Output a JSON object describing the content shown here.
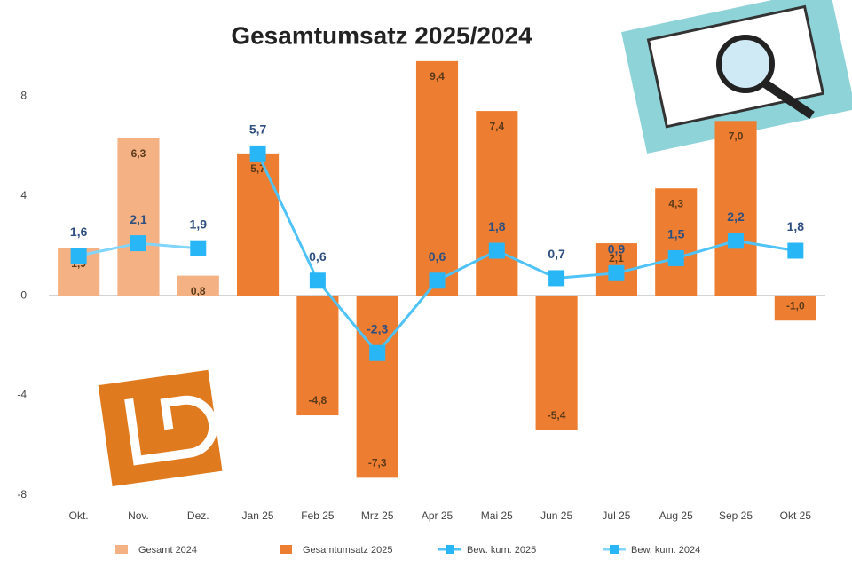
{
  "chart_data": {
    "type": "combo",
    "title": "Gesamtumsatz 2025/2024",
    "categories": [
      "Okt.",
      "Nov.",
      "Dez.",
      "Jan 25",
      "Feb 25",
      "Mrz 25",
      "Apr 25",
      "Mai 25",
      "Jun 25",
      "Jul 25",
      "Aug 25",
      "Sep 25",
      "Okt 25"
    ],
    "ylim": [
      -8,
      10
    ],
    "yticks": [
      -8,
      -4,
      0,
      4,
      8
    ],
    "grid": false,
    "series": [
      {
        "name": "Gesamt 2024",
        "type": "bar",
        "color": "#f4b183",
        "values": [
          1.9,
          6.3,
          0.8,
          null,
          null,
          null,
          null,
          null,
          null,
          null,
          null,
          null,
          null
        ],
        "value_labels": [
          "1,9",
          "6,3",
          "0,8",
          null,
          null,
          null,
          null,
          null,
          null,
          null,
          null,
          null,
          null
        ]
      },
      {
        "name": "Gesamtumsatz 2025",
        "type": "bar",
        "color": "#ed7d31",
        "values": [
          null,
          null,
          null,
          5.7,
          -4.8,
          -7.3,
          9.4,
          7.4,
          -5.4,
          2.1,
          4.3,
          7.0,
          -1.0
        ],
        "value_labels": [
          null,
          null,
          null,
          "5,7",
          "-4,8",
          "-7,3",
          "9,4",
          "7,4",
          "-5,4",
          "2,1",
          "4,3",
          "7,0",
          "-1,0"
        ]
      },
      {
        "name": "Bew. kum. 2025",
        "type": "line",
        "color": "#4fc3f7",
        "values": [
          null,
          null,
          null,
          5.7,
          0.6,
          -2.3,
          0.6,
          1.8,
          0.7,
          0.9,
          1.5,
          2.2,
          1.8
        ],
        "value_labels": [
          null,
          null,
          null,
          "5,7",
          "0,6",
          "-2,3",
          "0,6",
          "1,8",
          "0,7",
          "0,9",
          "1,5",
          "2,2",
          "1,8"
        ]
      },
      {
        "name": "Bew. kum. 2024",
        "type": "line",
        "color": "#81d4fa",
        "values": [
          1.6,
          2.1,
          1.9,
          null,
          null,
          null,
          null,
          null,
          null,
          null,
          null,
          null,
          null
        ],
        "value_labels": [
          "1,6",
          "2,1",
          "1,9",
          null,
          null,
          null,
          null,
          null,
          null,
          null,
          null,
          null,
          null
        ]
      }
    ]
  }
}
